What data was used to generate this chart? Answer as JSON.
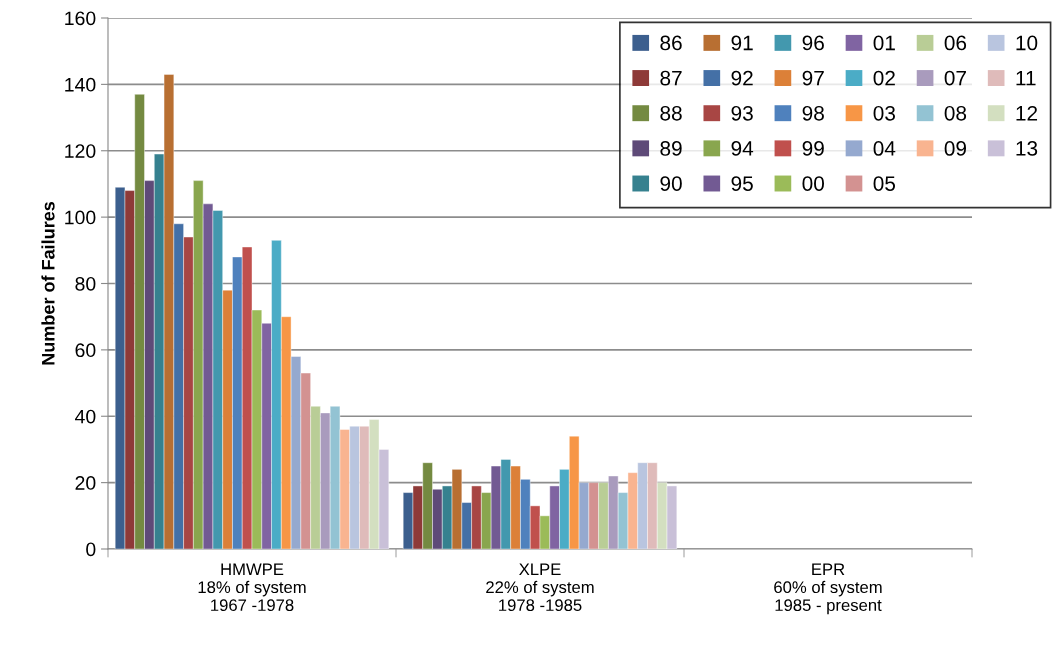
{
  "chart_data": {
    "type": "bar",
    "ylabel": "Number of Failures",
    "categories": [
      "HMWPE\n18% of system\n1967 -1978",
      "XLPE\n22% of system\n1978 -1985",
      "EPR\n60% of system\n1985 - present"
    ],
    "ylim": [
      0,
      160
    ],
    "yticks": [
      0,
      20,
      40,
      60,
      80,
      100,
      120,
      140,
      160
    ],
    "grid": "y",
    "legend": "top right",
    "series": [
      {
        "name": "86",
        "color": "#3c5f8e",
        "values": [
          109,
          17,
          null
        ]
      },
      {
        "name": "87",
        "color": "#8e3a38",
        "values": [
          108,
          19,
          null
        ]
      },
      {
        "name": "88",
        "color": "#748a41",
        "values": [
          137,
          26,
          null
        ]
      },
      {
        "name": "89",
        "color": "#5e4a78",
        "values": [
          111,
          18,
          null
        ]
      },
      {
        "name": "90",
        "color": "#36818f",
        "values": [
          119,
          19,
          null
        ]
      },
      {
        "name": "91",
        "color": "#b86f32",
        "values": [
          143,
          24,
          null
        ]
      },
      {
        "name": "92",
        "color": "#4470a6",
        "values": [
          98,
          14,
          null
        ]
      },
      {
        "name": "93",
        "color": "#a84644",
        "values": [
          94,
          19,
          null
        ]
      },
      {
        "name": "94",
        "color": "#89a64e",
        "values": [
          111,
          17,
          null
        ]
      },
      {
        "name": "95",
        "color": "#725a93",
        "values": [
          104,
          25,
          null
        ]
      },
      {
        "name": "96",
        "color": "#4398ae",
        "values": [
          102,
          27,
          null
        ]
      },
      {
        "name": "97",
        "color": "#dc8038",
        "values": [
          78,
          25,
          null
        ]
      },
      {
        "name": "98",
        "color": "#4f81bd",
        "values": [
          88,
          21,
          null
        ]
      },
      {
        "name": "99",
        "color": "#c0504d",
        "values": [
          91,
          13,
          null
        ]
      },
      {
        "name": "00",
        "color": "#9bbb59",
        "values": [
          72,
          10,
          null
        ]
      },
      {
        "name": "01",
        "color": "#8064a2",
        "values": [
          68,
          19,
          null
        ]
      },
      {
        "name": "02",
        "color": "#4bacc6",
        "values": [
          93,
          24,
          null
        ]
      },
      {
        "name": "03",
        "color": "#f79646",
        "values": [
          70,
          34,
          null
        ]
      },
      {
        "name": "04",
        "color": "#95a9cf",
        "values": [
          58,
          20,
          null
        ]
      },
      {
        "name": "05",
        "color": "#d39291",
        "values": [
          53,
          20,
          null
        ]
      },
      {
        "name": "06",
        "color": "#b9cd96",
        "values": [
          43,
          20,
          null
        ]
      },
      {
        "name": "07",
        "color": "#a99bbd",
        "values": [
          41,
          22,
          null
        ]
      },
      {
        "name": "08",
        "color": "#93c3d3",
        "values": [
          43,
          17,
          null
        ]
      },
      {
        "name": "09",
        "color": "#f9b490",
        "values": [
          36,
          23,
          null
        ]
      },
      {
        "name": "10",
        "color": "#b9c5df",
        "values": [
          37,
          26,
          null
        ]
      },
      {
        "name": "11",
        "color": "#dfbbba",
        "values": [
          37,
          26,
          null
        ]
      },
      {
        "name": "12",
        "color": "#d3dfc0",
        "values": [
          39,
          20,
          null
        ]
      },
      {
        "name": "13",
        "color": "#c9c0d8",
        "values": [
          30,
          19,
          null
        ]
      }
    ]
  }
}
